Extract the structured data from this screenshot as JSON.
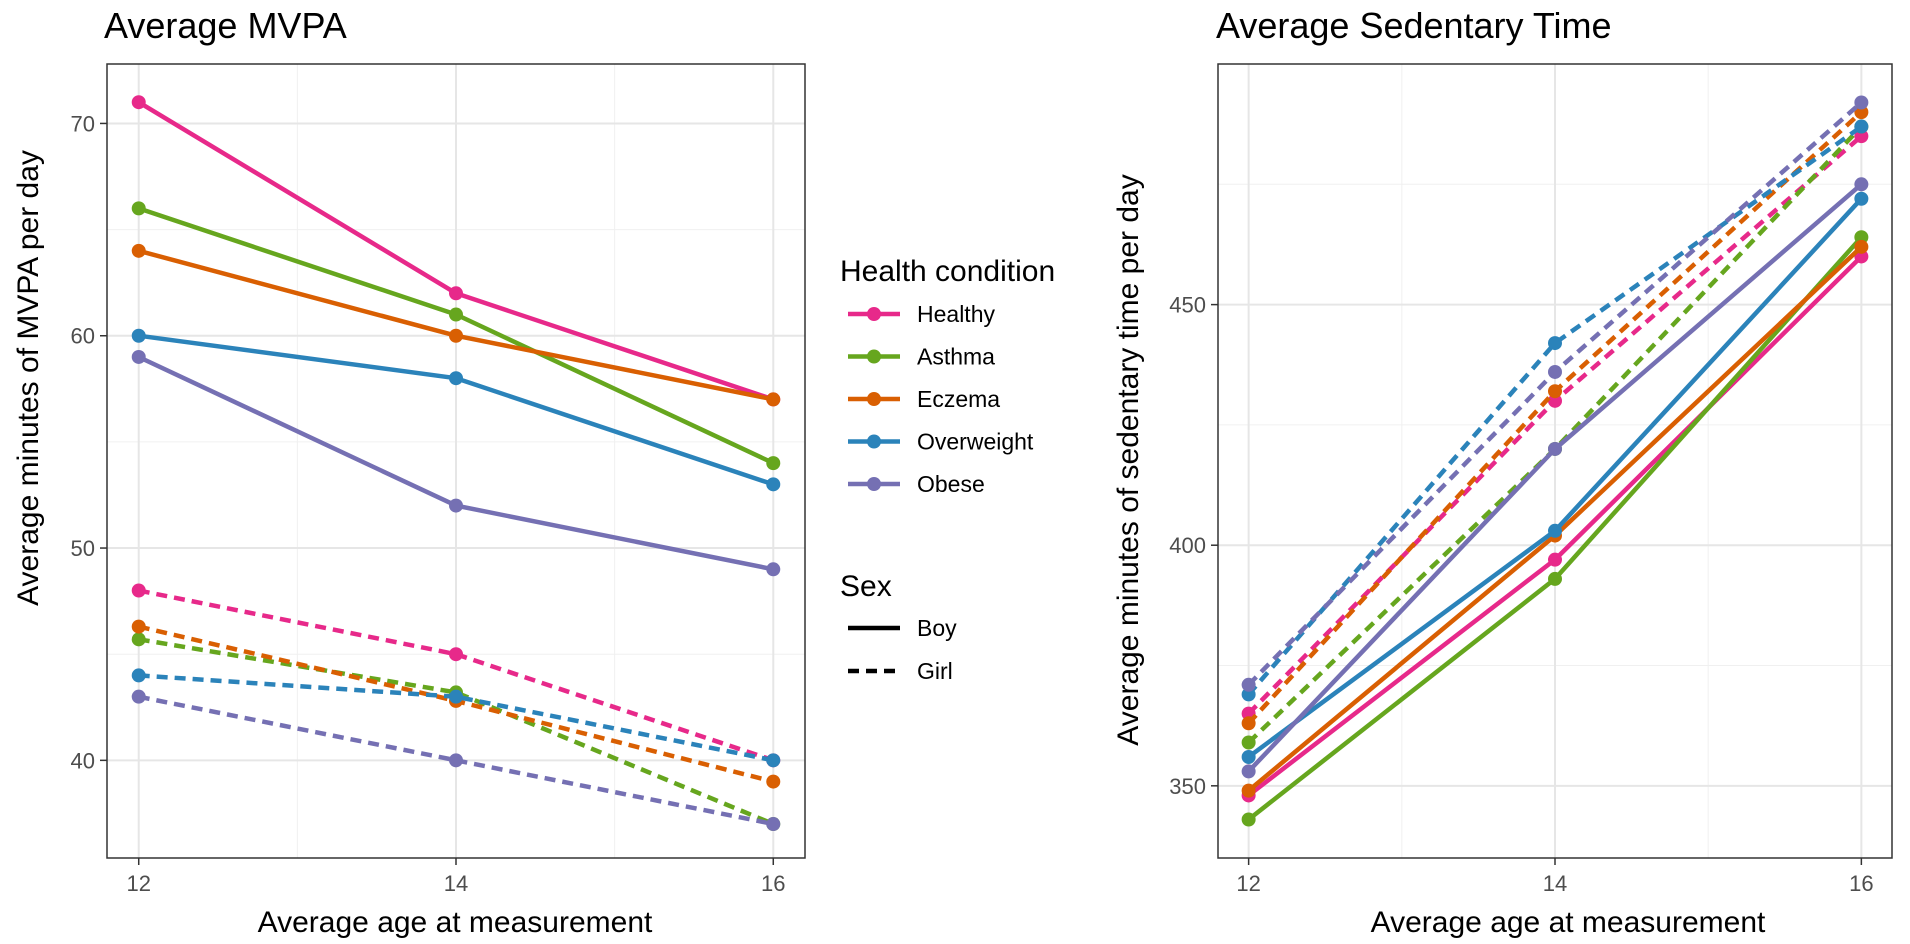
{
  "colors": {
    "Healthy": "#e7298a",
    "Asthma": "#66a61e",
    "Eczema": "#d95f02",
    "Overweight": "#2b83ba",
    "Obese": "#7570b3"
  },
  "legend": {
    "condition_title": "Health condition",
    "conditions": [
      "Healthy",
      "Asthma",
      "Eczema",
      "Overweight",
      "Obese"
    ],
    "sex_title": "Sex",
    "sexes": [
      {
        "label": "Boy",
        "linetype": "solid"
      },
      {
        "label": "Girl",
        "linetype": "dashed"
      }
    ]
  },
  "chart_data": [
    {
      "type": "line",
      "title": "Average MVPA",
      "xlabel": "Average age at measurement",
      "ylabel": "Average minutes of MVPA per day",
      "x": [
        12,
        14,
        16
      ],
      "xlim": [
        11.8,
        16.2
      ],
      "ylim": [
        35.4,
        72.8
      ],
      "xticks": [
        12,
        14,
        16
      ],
      "yticks": [
        40,
        50,
        60,
        70
      ],
      "grid": true,
      "legend_position": "right",
      "series": [
        {
          "name": "Healthy",
          "sex": "Boy",
          "values": [
            71,
            62,
            57
          ]
        },
        {
          "name": "Asthma",
          "sex": "Boy",
          "values": [
            66,
            61,
            54
          ]
        },
        {
          "name": "Eczema",
          "sex": "Boy",
          "values": [
            64,
            60,
            57
          ]
        },
        {
          "name": "Overweight",
          "sex": "Boy",
          "values": [
            60,
            58,
            53
          ]
        },
        {
          "name": "Obese",
          "sex": "Boy",
          "values": [
            59,
            52,
            49
          ]
        },
        {
          "name": "Healthy",
          "sex": "Girl",
          "values": [
            48,
            45,
            40
          ]
        },
        {
          "name": "Asthma",
          "sex": "Girl",
          "values": [
            45.7,
            43.2,
            37
          ]
        },
        {
          "name": "Eczema",
          "sex": "Girl",
          "values": [
            46.3,
            42.8,
            39
          ]
        },
        {
          "name": "Overweight",
          "sex": "Girl",
          "values": [
            44,
            43,
            40
          ]
        },
        {
          "name": "Obese",
          "sex": "Girl",
          "values": [
            43,
            40,
            37
          ]
        }
      ]
    },
    {
      "type": "line",
      "title": "Average Sedentary Time",
      "xlabel": "Average age at measurement",
      "ylabel": "Average minutes of sedentary time per day",
      "x": [
        12,
        14,
        16
      ],
      "xlim": [
        11.8,
        16.2
      ],
      "ylim": [
        335,
        500
      ],
      "xticks": [
        12,
        14,
        16
      ],
      "yticks": [
        350,
        400,
        450
      ],
      "grid": true,
      "legend_position": "left",
      "series": [
        {
          "name": "Healthy",
          "sex": "Boy",
          "values": [
            348,
            397,
            460
          ]
        },
        {
          "name": "Asthma",
          "sex": "Boy",
          "values": [
            343,
            393,
            464
          ]
        },
        {
          "name": "Eczema",
          "sex": "Boy",
          "values": [
            349,
            402,
            462
          ]
        },
        {
          "name": "Overweight",
          "sex": "Boy",
          "values": [
            356,
            403,
            472
          ]
        },
        {
          "name": "Obese",
          "sex": "Boy",
          "values": [
            353,
            420,
            475
          ]
        },
        {
          "name": "Healthy",
          "sex": "Girl",
          "values": [
            365,
            430,
            485
          ]
        },
        {
          "name": "Asthma",
          "sex": "Girl",
          "values": [
            359,
            420,
            487
          ]
        },
        {
          "name": "Eczema",
          "sex": "Girl",
          "values": [
            363,
            432,
            490
          ]
        },
        {
          "name": "Overweight",
          "sex": "Girl",
          "values": [
            369,
            442,
            487
          ]
        },
        {
          "name": "Obese",
          "sex": "Girl",
          "values": [
            371,
            436,
            492
          ]
        }
      ]
    }
  ]
}
